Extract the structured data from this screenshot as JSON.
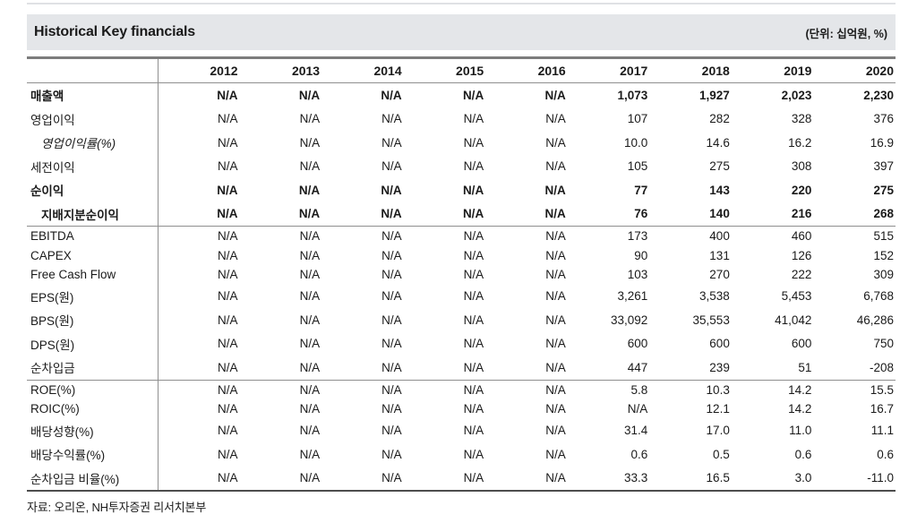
{
  "header": {
    "title": "Historical Key financials",
    "unit": "(단위: 십억원, %)"
  },
  "table": {
    "years": [
      "2012",
      "2013",
      "2014",
      "2015",
      "2016",
      "2017",
      "2018",
      "2019",
      "2020"
    ],
    "rows": [
      {
        "label": "매출액",
        "style": "bold",
        "indent": false,
        "section_end": false,
        "values": [
          "N/A",
          "N/A",
          "N/A",
          "N/A",
          "N/A",
          "1,073",
          "1,927",
          "2,023",
          "2,230"
        ]
      },
      {
        "label": "영업이익",
        "style": "normal",
        "indent": false,
        "section_end": false,
        "values": [
          "N/A",
          "N/A",
          "N/A",
          "N/A",
          "N/A",
          "107",
          "282",
          "328",
          "376"
        ]
      },
      {
        "label": "영업이익률(%)",
        "style": "italic",
        "indent": true,
        "section_end": false,
        "values": [
          "N/A",
          "N/A",
          "N/A",
          "N/A",
          "N/A",
          "10.0",
          "14.6",
          "16.2",
          "16.9"
        ]
      },
      {
        "label": "세전이익",
        "style": "normal",
        "indent": false,
        "section_end": false,
        "values": [
          "N/A",
          "N/A",
          "N/A",
          "N/A",
          "N/A",
          "105",
          "275",
          "308",
          "397"
        ]
      },
      {
        "label": "순이익",
        "style": "bold",
        "indent": false,
        "section_end": false,
        "values": [
          "N/A",
          "N/A",
          "N/A",
          "N/A",
          "N/A",
          "77",
          "143",
          "220",
          "275"
        ]
      },
      {
        "label": "지배지분순이익",
        "style": "bold",
        "indent": true,
        "section_end": true,
        "values": [
          "N/A",
          "N/A",
          "N/A",
          "N/A",
          "N/A",
          "76",
          "140",
          "216",
          "268"
        ]
      },
      {
        "label": "EBITDA",
        "style": "normal",
        "indent": false,
        "section_end": false,
        "values": [
          "N/A",
          "N/A",
          "N/A",
          "N/A",
          "N/A",
          "173",
          "400",
          "460",
          "515"
        ]
      },
      {
        "label": "CAPEX",
        "style": "normal",
        "indent": false,
        "section_end": false,
        "values": [
          "N/A",
          "N/A",
          "N/A",
          "N/A",
          "N/A",
          "90",
          "131",
          "126",
          "152"
        ]
      },
      {
        "label": "Free Cash Flow",
        "style": "normal",
        "indent": false,
        "section_end": false,
        "values": [
          "N/A",
          "N/A",
          "N/A",
          "N/A",
          "N/A",
          "103",
          "270",
          "222",
          "309"
        ]
      },
      {
        "label": "EPS(원)",
        "style": "normal",
        "indent": false,
        "section_end": false,
        "values": [
          "N/A",
          "N/A",
          "N/A",
          "N/A",
          "N/A",
          "3,261",
          "3,538",
          "5,453",
          "6,768"
        ]
      },
      {
        "label": "BPS(원)",
        "style": "normal",
        "indent": false,
        "section_end": false,
        "values": [
          "N/A",
          "N/A",
          "N/A",
          "N/A",
          "N/A",
          "33,092",
          "35,553",
          "41,042",
          "46,286"
        ]
      },
      {
        "label": "DPS(원)",
        "style": "normal",
        "indent": false,
        "section_end": false,
        "values": [
          "N/A",
          "N/A",
          "N/A",
          "N/A",
          "N/A",
          "600",
          "600",
          "600",
          "750"
        ]
      },
      {
        "label": "순차입금",
        "style": "normal",
        "indent": false,
        "section_end": true,
        "values": [
          "N/A",
          "N/A",
          "N/A",
          "N/A",
          "N/A",
          "447",
          "239",
          "51",
          "-208"
        ]
      },
      {
        "label": "ROE(%)",
        "style": "normal",
        "indent": false,
        "section_end": false,
        "values": [
          "N/A",
          "N/A",
          "N/A",
          "N/A",
          "N/A",
          "5.8",
          "10.3",
          "14.2",
          "15.5"
        ]
      },
      {
        "label": "ROIC(%)",
        "style": "normal",
        "indent": false,
        "section_end": false,
        "values": [
          "N/A",
          "N/A",
          "N/A",
          "N/A",
          "N/A",
          "N/A",
          "12.1",
          "14.2",
          "16.7"
        ]
      },
      {
        "label": "배당성향(%)",
        "style": "normal",
        "indent": false,
        "section_end": false,
        "values": [
          "N/A",
          "N/A",
          "N/A",
          "N/A",
          "N/A",
          "31.4",
          "17.0",
          "11.0",
          "11.1"
        ]
      },
      {
        "label": "배당수익률(%)",
        "style": "normal",
        "indent": false,
        "section_end": false,
        "values": [
          "N/A",
          "N/A",
          "N/A",
          "N/A",
          "N/A",
          "0.6",
          "0.5",
          "0.6",
          "0.6"
        ]
      },
      {
        "label": "순차입금 비율(%)",
        "style": "normal",
        "indent": false,
        "section_end": false,
        "values": [
          "N/A",
          "N/A",
          "N/A",
          "N/A",
          "N/A",
          "33.3",
          "16.5",
          "3.0",
          "-11.0"
        ]
      }
    ]
  },
  "footer": {
    "source": "자료: 오리온, NH투자증권 리서치본부"
  },
  "colors": {
    "title_bar_bg": "#e4e6e9",
    "table_top_border": "#7d7d7d",
    "table_thin_border": "#8f8f8f",
    "table_bottom_border": "#4d4d4d",
    "text": "#1a1a1a"
  }
}
